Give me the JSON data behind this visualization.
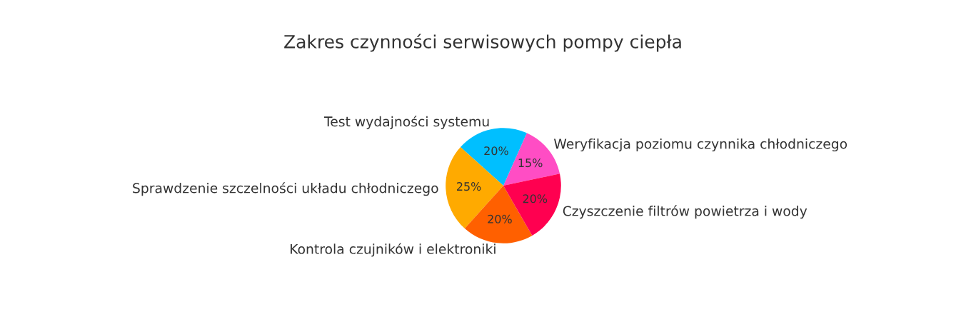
{
  "chart_data": {
    "type": "pie",
    "title": "Zakres czynności serwisowych pompy ciepła",
    "categories": [
      "Weryfikacja poziomu czynnika chłodniczego",
      "Test wydajności systemu",
      "Sprawdzenie szczelności układu chłodniczego",
      "Kontrola czujników i elektroniki",
      "Czyszczenie filtrów powietrza i wody"
    ],
    "values": [
      15,
      20,
      25,
      20,
      20
    ],
    "colors": [
      "#ff4dc4",
      "#00bfff",
      "#ffaa00",
      "#ff6000",
      "#ff0050"
    ],
    "value_labels": [
      "15%",
      "20%",
      "25%",
      "20%",
      "20%"
    ]
  }
}
